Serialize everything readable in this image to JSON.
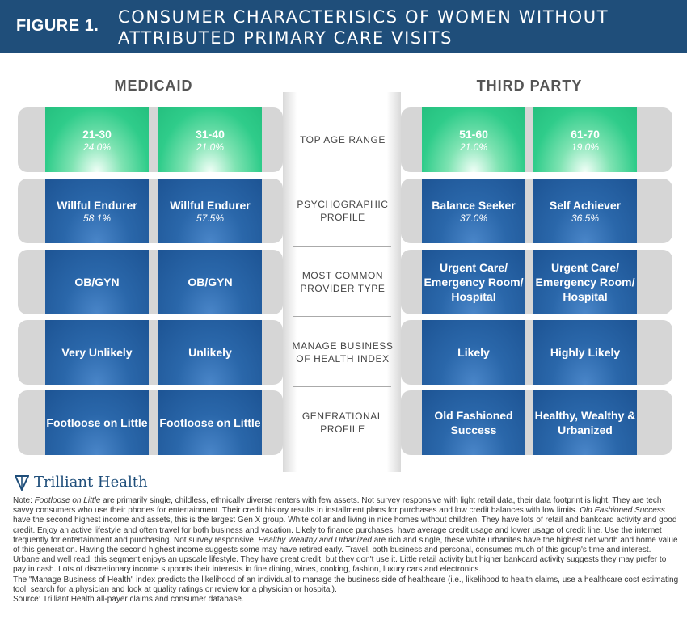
{
  "header": {
    "figure_label": "FIGURE 1.",
    "title": "CONSUMER CHARACTERISICS OF WOMEN WITHOUT ATTRIBUTED PRIMARY CARE VISITS"
  },
  "columns": {
    "left": "MEDICAID",
    "right": "THIRD PARTY"
  },
  "rows": [
    {
      "label": "TOP AGE RANGE",
      "medicaid": [
        {
          "value": "21-30",
          "pct": "24.0%"
        },
        {
          "value": "31-40",
          "pct": "21.0%"
        }
      ],
      "third_party": [
        {
          "value": "51-60",
          "pct": "21.0%"
        },
        {
          "value": "61-70",
          "pct": "19.0%"
        }
      ]
    },
    {
      "label": "PSYCHOGRAPHIC PROFILE",
      "medicaid": [
        {
          "value": "Willful Endurer",
          "pct": "58.1%"
        },
        {
          "value": "Willful Endurer",
          "pct": "57.5%"
        }
      ],
      "third_party": [
        {
          "value": "Balance Seeker",
          "pct": "37.0%"
        },
        {
          "value": "Self Achiever",
          "pct": "36.5%"
        }
      ]
    },
    {
      "label": "MOST COMMON PROVIDER TYPE",
      "medicaid": [
        {
          "value": "OB/GYN"
        },
        {
          "value": "OB/GYN"
        }
      ],
      "third_party": [
        {
          "value": "Urgent Care/ Emergency Room/ Hospital"
        },
        {
          "value": "Urgent Care/ Emergency Room/ Hospital"
        }
      ]
    },
    {
      "label": "MANAGE BUSINESS OF HEALTH INDEX",
      "medicaid": [
        {
          "value": "Very Unlikely"
        },
        {
          "value": "Unlikely"
        }
      ],
      "third_party": [
        {
          "value": "Likely"
        },
        {
          "value": "Highly Likely"
        }
      ]
    },
    {
      "label": "GENERATIONAL PROFILE",
      "medicaid": [
        {
          "value": "Footloose on Little"
        },
        {
          "value": "Footloose on Little"
        }
      ],
      "third_party": [
        {
          "value": "Old Fashioned Success"
        },
        {
          "value": "Healthy, Wealthy & Urbanized"
        }
      ]
    }
  ],
  "brand": {
    "name": "Trilliant Health",
    "icon": "trilliant-logo-icon"
  },
  "notes": {
    "n1": "Note: ",
    "n2": "Footloose on Little",
    "n3": " are primarily single, childless, ethnically diverse renters with few assets. Not survey responsive with light retail data, their data footprint is light. They are tech savvy consumers who use their phones for entertainment. Their credit history results in installment plans for purchases and low credit balances with low limits. ",
    "n4": "Old Fashioned Success",
    "n5": " have the second highest income and assets, this is the largest Gen X group. White collar and living in nice homes without children. They have lots of retail and bankcard activity and good credit. Enjoy an active lifestyle and often travel for both business and vacation. Likely to finance purchases, have average credit usage and lower usage of credit line. Use the internet frequently for entertainment and purchasing. Not survey responsive. ",
    "n6": "Healthy Wealthy and Urbanized",
    "n7": " are rich and single, these white urbanites have the highest net worth and home value of this generation. Having the second highest income suggests some may have retired early. Travel, both business and personal, consumes much of this group's time and interest. Urbane and well read, this segment enjoys an upscale lifestyle. They have great credit, but they don't use it. Little retail activity but higher bankcard activity suggests they may prefer to pay in cash. Lots of discretionary income supports their interests in fine dining, wines, cooking, fashion, luxury cars and electronics.",
    "index_note": "The \"Manage Business of Health\" index predicts the likelihood of an individual to manage the business side of healthcare (i.e., likelihood to health claims, use a healthcare cost estimating tool, search for a physician and look at quality ratings or review for a physician or hospital).",
    "source": "Source: Trilliant Health all-payer claims and consumer database."
  },
  "colors": {
    "header": "#1f4e7a",
    "green": "#2fcc8a",
    "blue": "#1d5494",
    "band": "#d6d6d6"
  }
}
